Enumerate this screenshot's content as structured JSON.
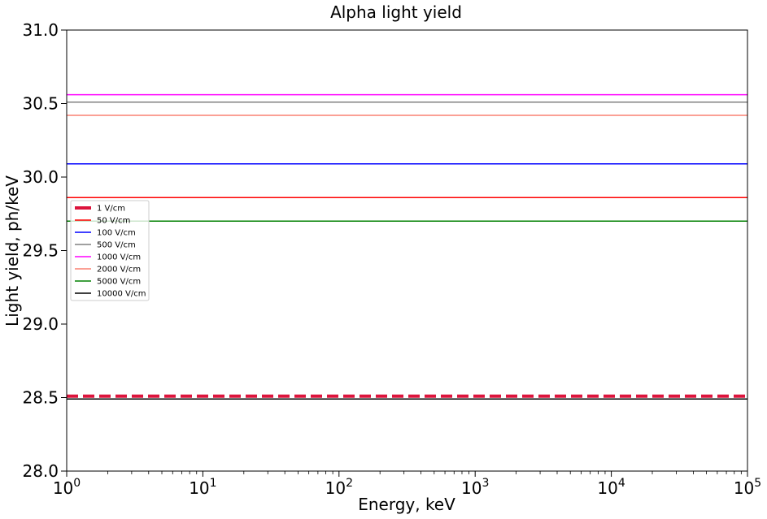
{
  "chart_data": {
    "type": "line",
    "title": "Alpha light yield",
    "xlabel": "Energy, keV",
    "ylabel": "Light yield, ph/keV",
    "xscale": "log",
    "xlim": [
      1,
      100000
    ],
    "ylim": [
      28.0,
      31.0
    ],
    "grid": false,
    "legend_position": "center-left",
    "x_ticks": [
      {
        "base": "10",
        "exp": "0"
      },
      {
        "base": "10",
        "exp": "1"
      },
      {
        "base": "10",
        "exp": "2"
      },
      {
        "base": "10",
        "exp": "3"
      },
      {
        "base": "10",
        "exp": "4"
      },
      {
        "base": "10",
        "exp": "5"
      }
    ],
    "y_ticks": [
      "28.0",
      "28.5",
      "29.0",
      "29.5",
      "30.0",
      "30.5",
      "31.0"
    ],
    "x": [
      1,
      100000
    ],
    "series": [
      {
        "name": "1 V/cm",
        "values": [
          28.51,
          28.51
        ],
        "color": "#dc143c",
        "style": "dashed"
      },
      {
        "name": "50 V/cm",
        "values": [
          29.86,
          29.86
        ],
        "color": "#ff0000",
        "style": "solid"
      },
      {
        "name": "100 V/cm",
        "values": [
          30.09,
          30.09
        ],
        "color": "#0000ff",
        "style": "solid"
      },
      {
        "name": "500 V/cm",
        "values": [
          30.51,
          30.51
        ],
        "color": "#808080",
        "style": "solid"
      },
      {
        "name": "1000 V/cm",
        "values": [
          30.56,
          30.56
        ],
        "color": "#ff00ff",
        "style": "solid"
      },
      {
        "name": "2000 V/cm",
        "values": [
          30.42,
          30.42
        ],
        "color": "#fa8072",
        "style": "solid"
      },
      {
        "name": "5000 V/cm",
        "values": [
          29.7,
          29.7
        ],
        "color": "#008000",
        "style": "solid"
      },
      {
        "name": "10000 V/cm",
        "values": [
          28.49,
          28.49
        ],
        "color": "#000000",
        "style": "solid"
      }
    ]
  }
}
